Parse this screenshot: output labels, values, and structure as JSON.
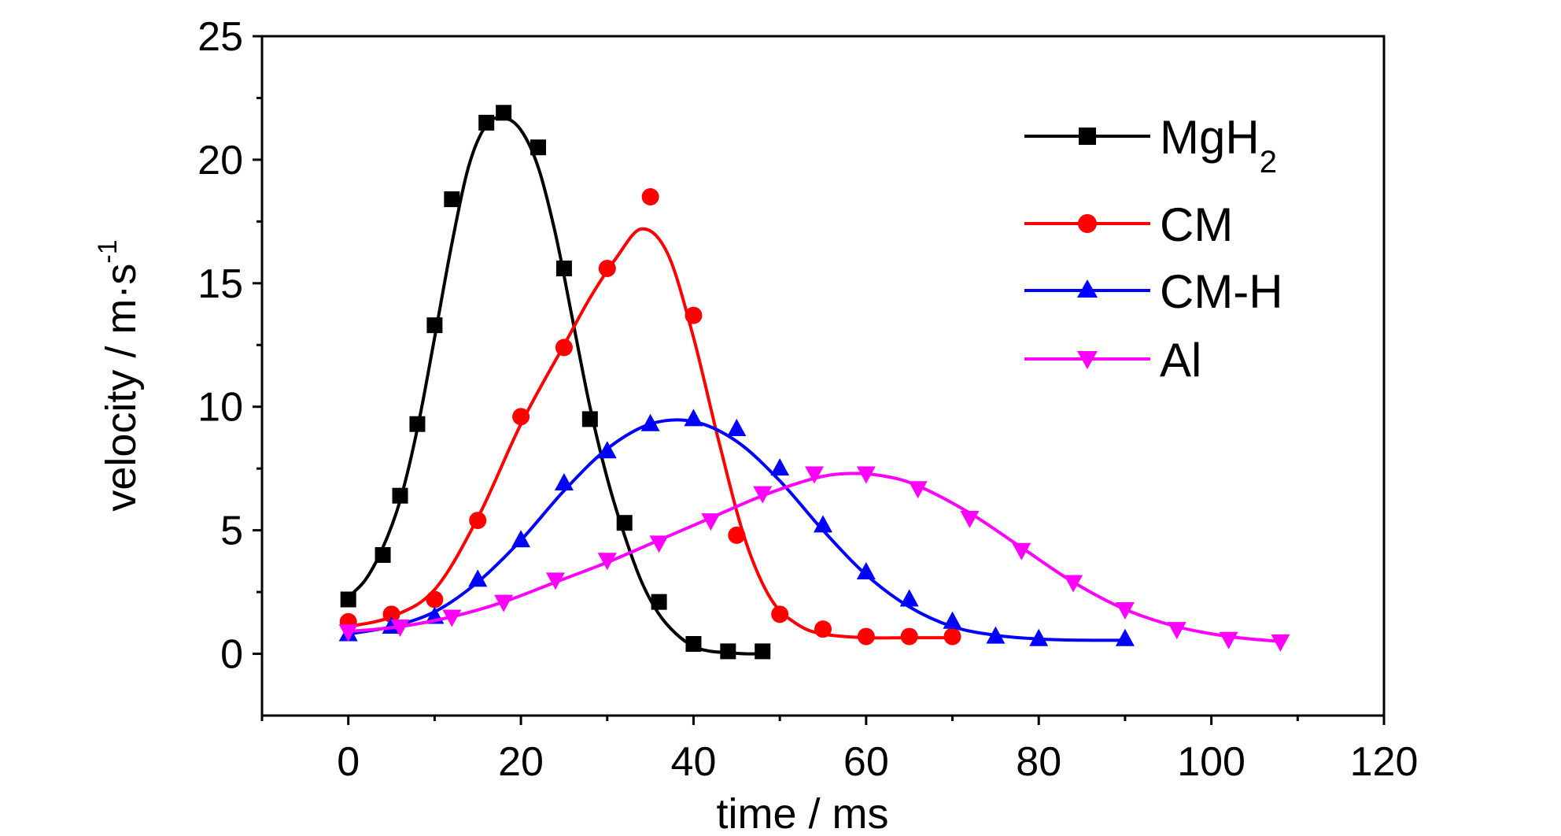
{
  "chart_data": {
    "type": "line",
    "title": "",
    "xlabel": "time / ms",
    "ylabel_main": "velocity / m·s",
    "ylabel_sup": "-1",
    "xlim": [
      -10,
      120
    ],
    "ylim": [
      -2.5,
      25
    ],
    "x_ticks": [
      0,
      20,
      40,
      60,
      80,
      100,
      120
    ],
    "y_ticks": [
      0,
      5,
      10,
      15,
      20,
      25
    ],
    "grid": false,
    "legend_position": "top-right",
    "series": [
      {
        "name": "MgH",
        "name_sub": "2",
        "color": "#000000",
        "marker": "square",
        "x": [
          0,
          4,
          6,
          8,
          10,
          12,
          16,
          18,
          22,
          25,
          28,
          32,
          36,
          40,
          44,
          48
        ],
        "y": [
          2.2,
          4.0,
          6.4,
          9.3,
          13.3,
          18.4,
          21.5,
          21.9,
          20.5,
          15.6,
          9.5,
          5.3,
          2.1,
          0.4,
          0.1,
          0.1
        ],
        "fit_x": [
          0,
          2,
          4,
          6,
          8,
          10,
          12,
          14,
          16,
          18,
          20,
          22,
          24,
          26,
          28,
          30,
          32,
          34,
          36,
          38,
          40,
          42,
          44,
          46,
          48
        ],
        "fit_y": [
          2.3,
          3.0,
          4.3,
          6.2,
          9.1,
          12.8,
          16.6,
          19.8,
          21.4,
          21.7,
          21.2,
          19.7,
          17.0,
          13.5,
          10.0,
          7.1,
          4.8,
          2.9,
          1.6,
          0.8,
          0.3,
          0.1,
          0.05,
          0.0,
          0.0
        ]
      },
      {
        "name": "CM",
        "name_sub": "",
        "color": "#ff0000",
        "marker": "circle",
        "x": [
          0,
          5,
          10,
          15,
          20,
          25,
          30,
          35,
          40,
          45,
          50,
          55,
          60,
          65,
          70
        ],
        "y": [
          1.3,
          1.6,
          2.2,
          5.4,
          9.6,
          12.4,
          15.6,
          18.5,
          13.7,
          4.8,
          1.6,
          1.0,
          0.7,
          0.7,
          0.7
        ],
        "fit_x": [
          0,
          5,
          10,
          15,
          20,
          25,
          28,
          31,
          34,
          37,
          40,
          43,
          46,
          49,
          52,
          55,
          60,
          65,
          70
        ],
        "fit_y": [
          1.1,
          1.5,
          2.6,
          5.5,
          9.3,
          12.5,
          14.4,
          16.0,
          17.2,
          16.2,
          12.8,
          8.5,
          4.6,
          2.2,
          1.2,
          0.8,
          0.65,
          0.65,
          0.65
        ]
      },
      {
        "name": "CM-H",
        "name_sub": "",
        "color": "#0000ff",
        "marker": "triangle-up",
        "x": [
          0,
          5,
          10,
          15,
          20,
          25,
          30,
          35,
          40,
          45,
          50,
          55,
          60,
          65,
          70,
          75,
          80,
          90
        ],
        "y": [
          0.8,
          1.1,
          1.5,
          3.0,
          4.6,
          6.9,
          8.2,
          9.3,
          9.5,
          9.1,
          7.5,
          5.2,
          3.3,
          2.2,
          1.3,
          0.7,
          0.6,
          0.6
        ],
        "fit_x": [
          0,
          5,
          10,
          15,
          20,
          25,
          30,
          35,
          40,
          45,
          50,
          55,
          60,
          65,
          70,
          75,
          80,
          85,
          90
        ],
        "fit_y": [
          0.8,
          1.1,
          1.7,
          2.9,
          4.6,
          6.6,
          8.3,
          9.3,
          9.4,
          8.6,
          7.0,
          5.0,
          3.2,
          1.9,
          1.1,
          0.75,
          0.6,
          0.55,
          0.55
        ]
      },
      {
        "name": "Al",
        "name_sub": "",
        "color": "#ff00ff",
        "marker": "triangle-down",
        "x": [
          0,
          6,
          12,
          18,
          24,
          30,
          36,
          42,
          48,
          54,
          60,
          66,
          72,
          78,
          84,
          90,
          96,
          102,
          108
        ],
        "y": [
          0.9,
          1.1,
          1.5,
          2.1,
          3.0,
          3.8,
          4.5,
          5.4,
          6.5,
          7.3,
          7.3,
          6.7,
          5.5,
          4.2,
          2.9,
          1.8,
          1.0,
          0.6,
          0.5
        ],
        "fit_x": [
          0,
          6,
          12,
          18,
          24,
          30,
          36,
          42,
          48,
          54,
          58,
          62,
          66,
          72,
          78,
          84,
          90,
          96,
          102,
          108
        ],
        "fit_y": [
          0.9,
          1.1,
          1.5,
          2.1,
          2.9,
          3.7,
          4.6,
          5.5,
          6.4,
          7.1,
          7.3,
          7.2,
          6.8,
          5.7,
          4.3,
          2.9,
          1.8,
          1.1,
          0.7,
          0.5
        ]
      }
    ]
  }
}
